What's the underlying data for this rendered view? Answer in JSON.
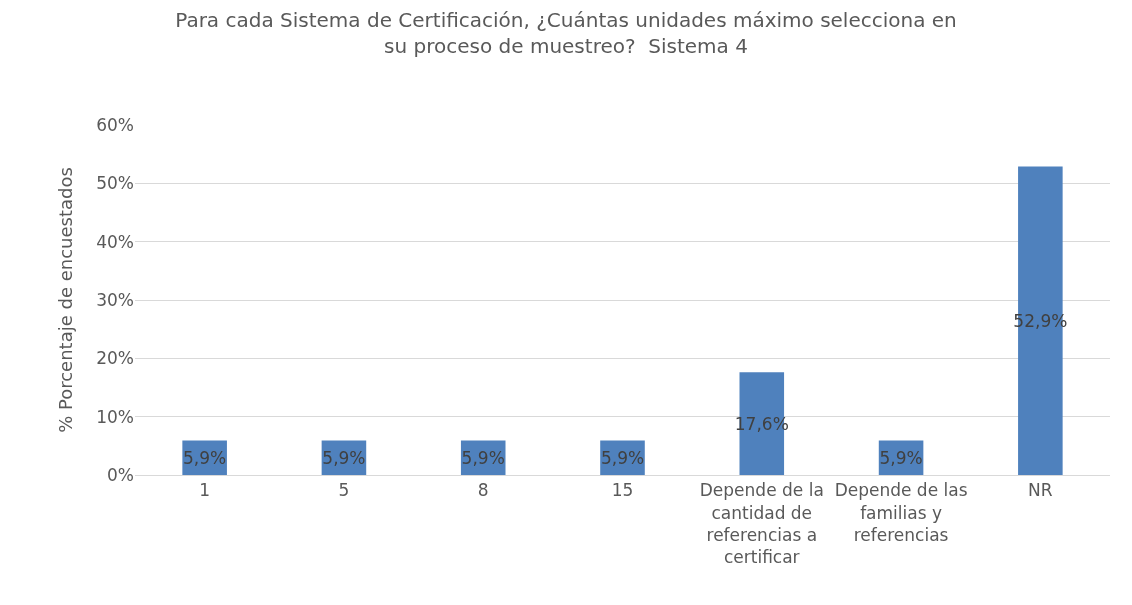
{
  "chart_data": {
    "type": "bar",
    "title": "Para cada Sistema de Certificación, ¿Cuántas unidades máximo selecciona en su proceso de muestreo?  Sistema 4",
    "ylabel": "% Porcentaje de encuestados",
    "categories": [
      "1",
      "5",
      "8",
      "15",
      "Depende de la cantidad de referencias a certificar",
      "Depende de las familias y referencias",
      "NR"
    ],
    "values": [
      5.9,
      5.9,
      5.9,
      5.9,
      17.6,
      5.9,
      52.9
    ],
    "value_labels": [
      "5,9%",
      "5,9%",
      "5,9%",
      "5,9%",
      "17,6%",
      "5,9%",
      "52,9%"
    ],
    "color": "#4f81bd",
    "ylim": [
      0,
      60
    ],
    "yticks": [
      {
        "value": 0,
        "label": "0%"
      },
      {
        "value": 10,
        "label": "10%"
      },
      {
        "value": 20,
        "label": "20%"
      },
      {
        "value": 30,
        "label": "30%"
      },
      {
        "value": 40,
        "label": "40%"
      },
      {
        "value": 50,
        "label": "50%"
      },
      {
        "value": 60,
        "label": "60%"
      }
    ],
    "grid": "y"
  }
}
